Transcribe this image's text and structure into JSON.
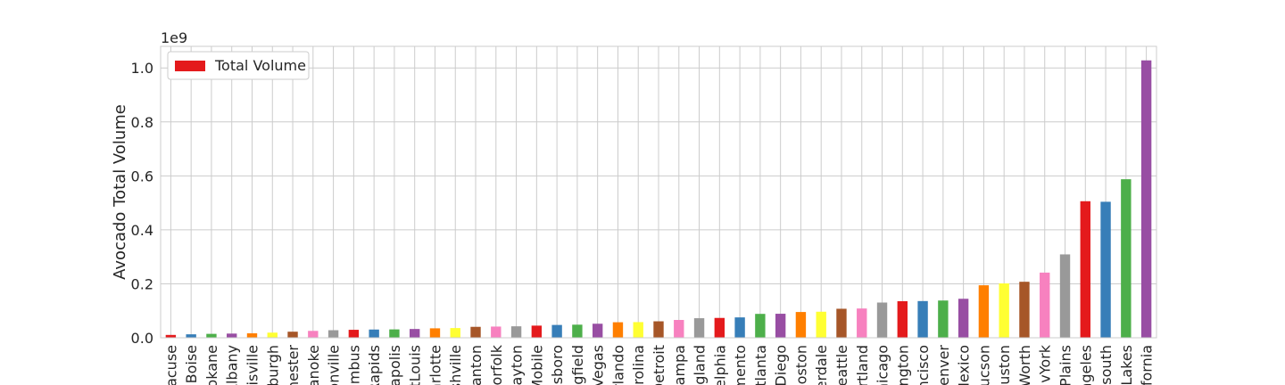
{
  "chart_data": {
    "type": "bar",
    "ylabel": "Avocado Total Volume",
    "y_offset_label": "1e9",
    "ylim": [
      0,
      1.08
    ],
    "yticks": [
      "0.0",
      "0.2",
      "0.4",
      "0.6",
      "0.8",
      "1.0"
    ],
    "grid": true,
    "legend": {
      "placement": "top-left",
      "entries": [
        "Total Volume"
      ]
    },
    "legend_swatch_color": "#e41a1c",
    "palette": [
      "#e41a1c",
      "#377eb8",
      "#4daf4a",
      "#984ea3",
      "#ff7f00",
      "#ffff33",
      "#a65628",
      "#f781bf",
      "#999999"
    ],
    "categories": [
      "acuse",
      "Boise",
      "okane",
      "Albany",
      "isville",
      "burgh",
      "hester",
      "anoke",
      "onville",
      "umbus",
      "Rapids",
      "napolis",
      "tLouis",
      "arlotte",
      "shville",
      "anton",
      "orfolk",
      "ayton",
      "Mobile",
      "sboro",
      "gfield",
      "Vegas",
      "rlando",
      "rolina",
      "Detroit",
      "ampa",
      "gland",
      "elphia",
      "mento",
      "Atlanta",
      "Diego",
      "oston",
      "erdale",
      "Seattle",
      "rtland",
      "hicago",
      "ngton",
      "ncisco",
      "enver",
      "Mexico",
      "ucson",
      "uston",
      "Worth",
      "vYork",
      "Plains",
      "ngeles",
      "south",
      "Lakes",
      "fornia"
    ],
    "series": [
      {
        "name": "Total Volume",
        "values": [
          0.0105,
          0.0128,
          0.0145,
          0.0155,
          0.0165,
          0.019,
          0.0225,
          0.0255,
          0.028,
          0.0295,
          0.0305,
          0.031,
          0.0325,
          0.035,
          0.036,
          0.0405,
          0.0415,
          0.0425,
          0.045,
          0.0475,
          0.0485,
          0.052,
          0.0575,
          0.058,
          0.061,
          0.066,
          0.0725,
          0.0735,
          0.0755,
          0.0885,
          0.089,
          0.0955,
          0.0965,
          0.1075,
          0.1085,
          0.1305,
          0.1355,
          0.136,
          0.138,
          0.1445,
          0.1945,
          0.2015,
          0.2075,
          0.2415,
          0.309,
          0.506,
          0.504,
          0.5875,
          1.028
        ]
      }
    ]
  }
}
